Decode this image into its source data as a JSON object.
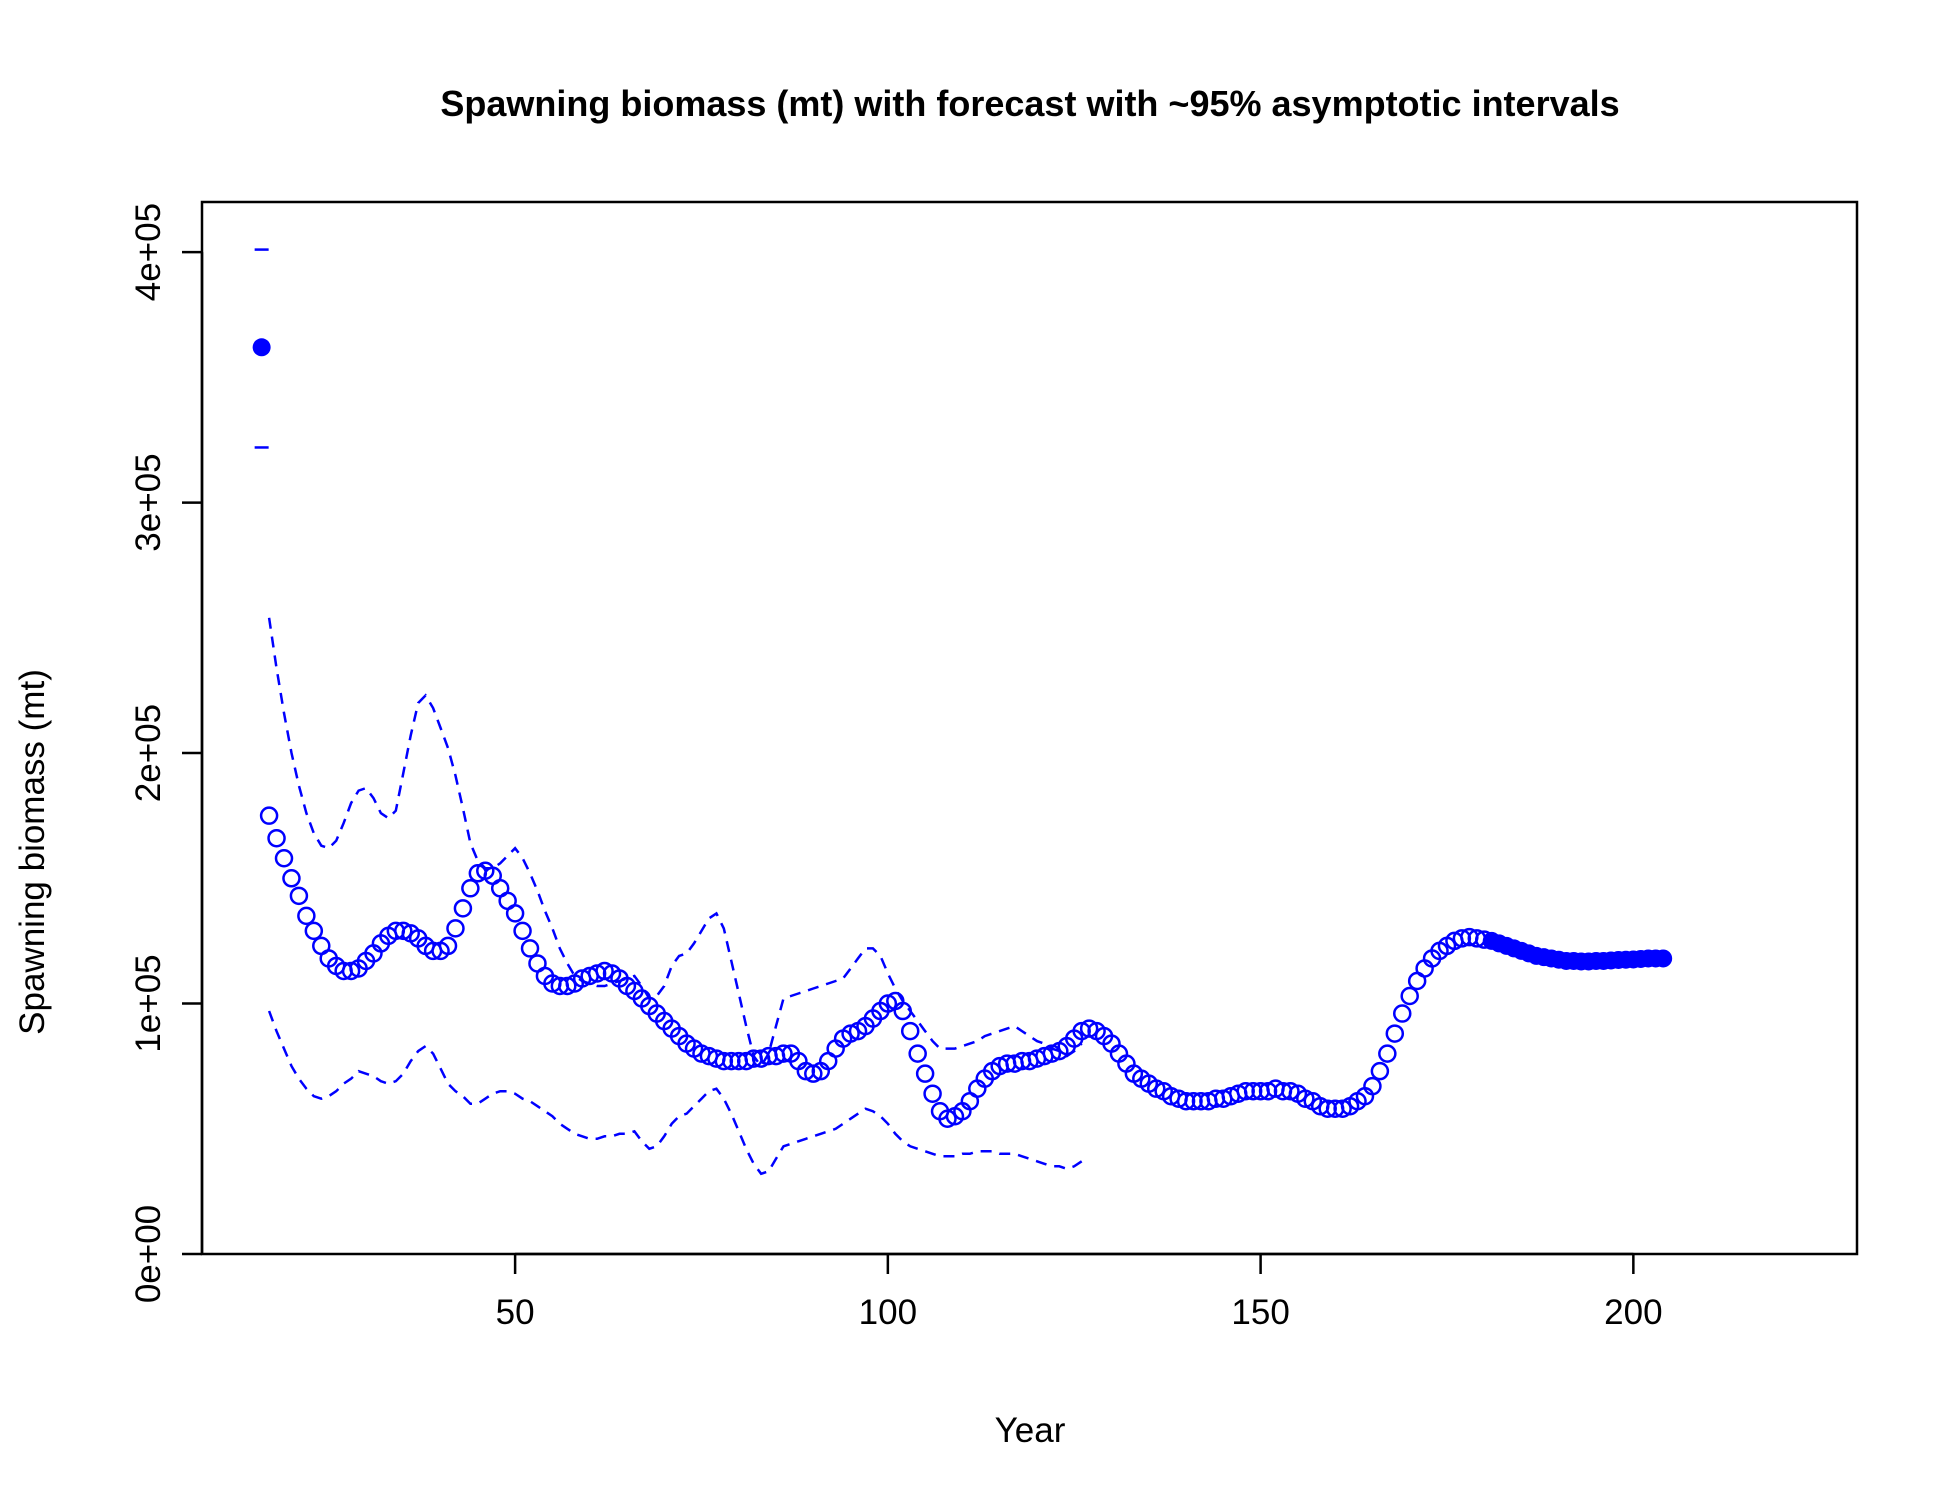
{
  "chart_data": {
    "type": "scatter",
    "title": "Spawning biomass (mt) with forecast with ~95% asymptotic intervals",
    "xlabel": "Year",
    "ylabel": "Spawning biomass (mt)",
    "xlim": [
      8,
      230
    ],
    "ylim": [
      0,
      420000
    ],
    "x_ticks": [
      50,
      100,
      150,
      200
    ],
    "x_tick_labels": [
      "50",
      "100",
      "150",
      "200"
    ],
    "y_ticks": [
      0,
      100000,
      200000,
      300000,
      400000
    ],
    "y_tick_labels": [
      "0e+00",
      "1e+05",
      "2e+05",
      "3e+05",
      "4e+05"
    ],
    "grid": false,
    "legend": "none",
    "color": "#0000ff",
    "virgin": {
      "year": 16,
      "value": 362000,
      "lower": 322000,
      "upper": 401000
    },
    "start_year": 17,
    "forecast_start_year": 181,
    "spawning_biomass": [
      175000,
      166000,
      158000,
      150000,
      143000,
      135000,
      129000,
      123000,
      118000,
      115000,
      113000,
      113000,
      114000,
      117000,
      120000,
      124000,
      127000,
      129000,
      129000,
      128000,
      126000,
      123000,
      121000,
      121000,
      123000,
      130000,
      138000,
      146000,
      152000,
      153000,
      151000,
      146000,
      141000,
      136000,
      129000,
      122000,
      116000,
      111000,
      108000,
      107000,
      107000,
      108000,
      110000,
      111000,
      112000,
      113000,
      112000,
      110000,
      107000,
      105000,
      102000,
      99000,
      96000,
      93000,
      90000,
      87000,
      84000,
      82000,
      80000,
      79000,
      78000,
      77000,
      77000,
      77000,
      77000,
      78000,
      78000,
      79000,
      79000,
      80000,
      80000,
      77000,
      73000,
      72000,
      73000,
      77000,
      82000,
      86000,
      88000,
      89000,
      91000,
      94000,
      97000,
      100000,
      101000,
      97000,
      89000,
      80000,
      72000,
      64000,
      57000,
      54000,
      55000,
      57000,
      61000,
      66000,
      70000,
      73000,
      75000,
      76000,
      76000,
      77000,
      77000,
      78000,
      79000,
      80000,
      81000,
      83000,
      86000,
      89000,
      90000,
      89000,
      87000,
      84000,
      80000,
      76000,
      72000,
      70000,
      68000,
      66000,
      65000,
      63000,
      62000,
      61000,
      61000,
      61000,
      61000,
      62000,
      62000,
      63000,
      64000,
      65000,
      65000,
      65000,
      65000,
      66000,
      65000,
      65000,
      64000,
      62000,
      61000,
      59000,
      58000,
      58000,
      58000,
      59000,
      61000,
      63000,
      67000,
      73000,
      80000,
      88000,
      96000,
      103000,
      109000,
      114000,
      118000,
      121000,
      123000,
      125000,
      126000,
      126500,
      126000,
      125500,
      125000,
      124000,
      123000,
      122000,
      121000,
      120000,
      119000,
      118500,
      118000,
      117500,
      117000,
      117000,
      116800,
      116800,
      117000,
      117000,
      117200,
      117400,
      117500,
      117600,
      117800,
      118000,
      118000,
      118000
    ],
    "upper_interval": [
      254000,
      234000,
      216000,
      200000,
      187000,
      176000,
      168000,
      163000,
      162000,
      165000,
      172000,
      180000,
      185000,
      186000,
      182000,
      176000,
      174000,
      177000,
      192000,
      207000,
      220000,
      223000,
      218000,
      210000,
      202000,
      191000,
      178000,
      164000,
      157000,
      154000,
      154000,
      156000,
      159000,
      162000,
      158000,
      152000,
      145000,
      137000,
      130000,
      122000,
      116000,
      111000,
      109000,
      108000,
      107000,
      107000,
      108000,
      109000,
      110000,
      111000,
      107000,
      102000,
      103000,
      107000,
      115000,
      119000,
      120000,
      124000,
      129000,
      134000,
      136000,
      130000,
      117000,
      104000,
      91000,
      79000,
      75000,
      80000,
      91000,
      102000,
      103000,
      104000,
      105000,
      106000,
      107000,
      108000,
      109000,
      110000,
      114000,
      118000,
      122000,
      122000,
      119000,
      112000,
      106000,
      101000,
      97000,
      93000,
      89000,
      85000,
      82000,
      82000,
      82000,
      83000,
      84000,
      85000,
      87000,
      88000,
      89000,
      90000,
      91000,
      89000,
      87000,
      85000,
      84000,
      82000,
      81000,
      79000,
      81000,
      84000
    ],
    "lower_interval": [
      97000,
      89000,
      82000,
      75000,
      70000,
      66000,
      63000,
      62000,
      63000,
      65000,
      68000,
      70000,
      73000,
      72000,
      71000,
      69000,
      68000,
      69000,
      72000,
      77000,
      81000,
      83000,
      80000,
      74000,
      68000,
      65000,
      63000,
      60000,
      60000,
      62000,
      64000,
      65000,
      65000,
      64000,
      62000,
      61000,
      59000,
      57000,
      55000,
      52000,
      50000,
      48000,
      47000,
      46000,
      46000,
      47000,
      47000,
      48000,
      48000,
      49000,
      45000,
      42000,
      43000,
      47000,
      52000,
      55000,
      56000,
      59000,
      62000,
      65000,
      66000,
      62000,
      56000,
      49000,
      42000,
      36000,
      32000,
      33000,
      38000,
      43000,
      44000,
      45000,
      46000,
      47000,
      48000,
      49000,
      50000,
      52000,
      54000,
      56000,
      58000,
      57000,
      55000,
      52000,
      48000,
      45000,
      43000,
      42000,
      41000,
      40000,
      39000,
      39000,
      39000,
      40000,
      40000,
      41000,
      41000,
      41000,
      40000,
      40000,
      40000,
      39000,
      38000,
      37000,
      36000,
      35000,
      35000,
      34000,
      35000,
      37000
    ]
  }
}
